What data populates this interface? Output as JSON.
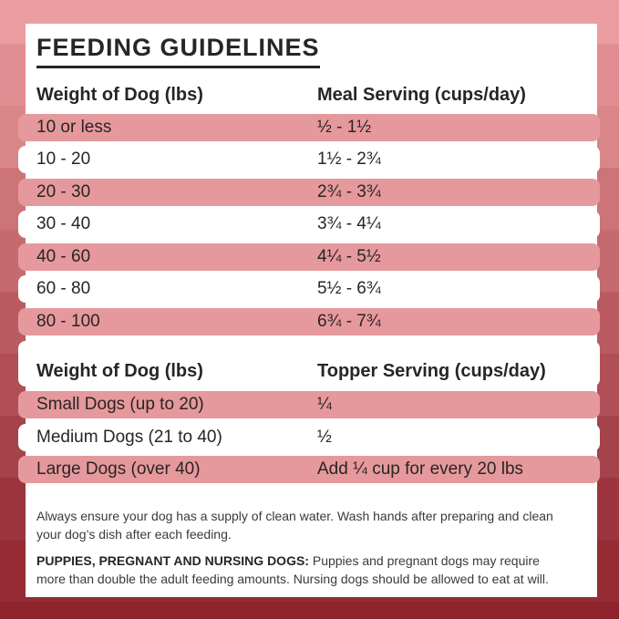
{
  "title": "FEEDING GUIDELINES",
  "meal_table": {
    "col_weight": "Weight of Dog (lbs)",
    "col_serving": "Meal Serving (cups/day)",
    "rows": [
      {
        "weight": "10 or less",
        "serving": "½ - 1½"
      },
      {
        "weight": "10 - 20",
        "serving": "1½ - 2¾"
      },
      {
        "weight": "20 - 30",
        "serving": "2¾ - 3¾"
      },
      {
        "weight": "30 - 40",
        "serving": "3¾ - 4¼"
      },
      {
        "weight": "40 - 60",
        "serving": "4¼ - 5½"
      },
      {
        "weight": "60 - 80",
        "serving": "5½ - 6¾"
      },
      {
        "weight": "80 - 100",
        "serving": "6¾ - 7¾"
      }
    ]
  },
  "topper_table": {
    "col_weight": "Weight of Dog (lbs)",
    "col_serving": "Topper Serving (cups/day)",
    "rows": [
      {
        "weight": "Small Dogs (up to 20)",
        "serving": "¼"
      },
      {
        "weight": "Medium Dogs (21 to 40)",
        "serving": "½"
      },
      {
        "weight": "Large Dogs (over 40)",
        "serving": "Add ¼ cup for every 20 lbs"
      }
    ]
  },
  "footer": {
    "note1": "Always ensure your dog has a supply of clean water. Wash hands after preparing and clean\nyour dog’s dish after each feeding.",
    "note2_bold": "PUPPIES, PREGNANT AND NURSING DOGS:",
    "note2_rest": " Puppies and pregnant dogs may require\nmore than double the adult feeding amounts. Nursing dogs should be allowed to eat at will."
  },
  "colors": {
    "row_pink": "#e6999c",
    "card_bg": "#ffffff",
    "text_dark": "#292425",
    "footer_text": "#3d3839",
    "background_bands": [
      {
        "color": "#ec9da0",
        "to": 48
      },
      {
        "color": "#e08e91",
        "to": 116
      },
      {
        "color": "#d98689",
        "to": 184
      },
      {
        "color": "#cd7478",
        "to": 252
      },
      {
        "color": "#c56b6f",
        "to": 320
      },
      {
        "color": "#b95b60",
        "to": 388
      },
      {
        "color": "#b04f55",
        "to": 456
      },
      {
        "color": "#a4434a",
        "to": 524
      },
      {
        "color": "#9c353d",
        "to": 592
      },
      {
        "color": "#952c33",
        "to": 660
      },
      {
        "color": "#8d242b",
        "to": 679
      }
    ]
  }
}
